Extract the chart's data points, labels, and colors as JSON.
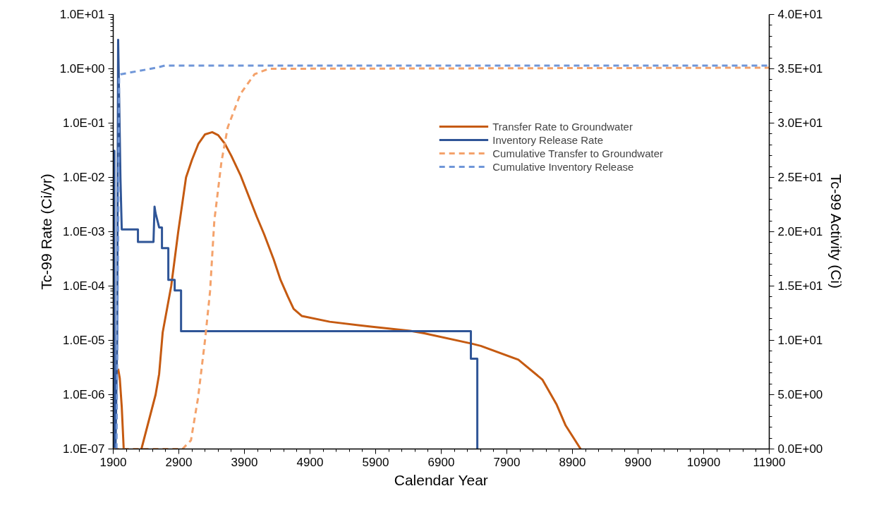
{
  "chart_data": {
    "type": "line",
    "xlabel": "Calendar Year",
    "ylabel": "Tc-99 Rate (Ci/yr)",
    "y2label": "Tc-99 Activity (Ci)",
    "log": "y",
    "xlim": [
      1900,
      11900
    ],
    "xticks": [
      1900,
      2900,
      3900,
      4900,
      5900,
      6900,
      7900,
      8900,
      9900,
      10900,
      11900
    ],
    "ylim": [
      1e-07,
      10
    ],
    "yticks": [
      {
        "value": 1e-07,
        "label": "1.0E-07"
      },
      {
        "value": 1e-06,
        "label": "1.0E-06"
      },
      {
        "value": 1e-05,
        "label": "1.0E-05"
      },
      {
        "value": 0.0001,
        "label": "1.0E-04"
      },
      {
        "value": 0.001,
        "label": "1.0E-03"
      },
      {
        "value": 0.01,
        "label": "1.0E-02"
      },
      {
        "value": 0.1,
        "label": "1.0E-01"
      },
      {
        "value": 1,
        "label": "1.0E+00"
      },
      {
        "value": 10,
        "label": "1.0E+01"
      }
    ],
    "y2lim": [
      0,
      40
    ],
    "y2ticks": [
      {
        "value": 0,
        "label": "0.0E+00"
      },
      {
        "value": 5,
        "label": "5.0E+00"
      },
      {
        "value": 10,
        "label": "1.0E+01"
      },
      {
        "value": 15,
        "label": "1.5E+01"
      },
      {
        "value": 20,
        "label": "2.0E+01"
      },
      {
        "value": 25,
        "label": "2.5E+01"
      },
      {
        "value": 30,
        "label": "3.0E+01"
      },
      {
        "value": 35,
        "label": "3.5E+01"
      },
      {
        "value": 40,
        "label": "4.0E+01"
      }
    ],
    "grid": false,
    "legend": "top right",
    "marker": "none",
    "series": [
      {
        "name": "Transfer Rate to Groundwater",
        "color": "#c55a11",
        "line_style": "solid",
        "x": [
          1975,
          2000,
          2030,
          2060,
          2061,
          2330,
          2546,
          2600,
          2654,
          2784,
          2891,
          3010,
          3100,
          3200,
          3300,
          3409,
          3500,
          3600,
          3700,
          3840,
          4087,
          4200,
          4346,
          4450,
          4562,
          4650,
          4777,
          5200,
          5800,
          6426,
          6641,
          7363,
          7503,
          8075,
          8441,
          8656,
          8797,
          9025
        ],
        "values": [
          3e-06,
          2e-06,
          6e-07,
          1e-07,
          null,
          1e-07,
          1e-06,
          2.4e-06,
          1.4e-05,
          0.0001,
          0.001,
          0.01,
          0.021,
          0.042,
          0.062,
          0.068,
          0.06,
          0.042,
          0.025,
          0.011,
          0.0019,
          0.0009,
          0.00031,
          0.00013,
          6.4e-05,
          3.8e-05,
          2.8e-05,
          2.2e-05,
          1.8e-05,
          1.5e-05,
          1.35e-05,
          8.7e-06,
          7.9e-06,
          4.4e-06,
          1.9e-06,
          6.7e-07,
          2.7e-07,
          1e-07
        ]
      },
      {
        "name": "Inventory Release Rate",
        "color": "#2f5597",
        "line_style": "solid",
        "x": [
          1900,
          1918,
          1920,
          1935,
          1960,
          1975,
          1990,
          2010,
          2030,
          2277,
          2277,
          2514,
          2530,
          2545,
          2580,
          2600,
          2643,
          2643,
          2740,
          2740,
          2837,
          2837,
          2934,
          2934,
          7352,
          7352,
          7450,
          7450
        ],
        "values": [
          1e-07,
          0.031,
          1e-07,
          1e-07,
          1e-05,
          3.4,
          0.3,
          0.01,
          0.0011,
          0.0011,
          0.00065,
          0.00065,
          0.0029,
          0.0022,
          0.0015,
          0.0012,
          0.0012,
          0.0005,
          0.0005,
          0.00013,
          0.00013,
          8.3e-05,
          8.3e-05,
          1.48e-05,
          1.48e-05,
          4.6e-06,
          4.6e-06,
          1e-07
        ]
      },
      {
        "name": "Cumulative Transfer to Groundwater",
        "color": "#f4a26b",
        "line_style": "dashed",
        "axis": "y2",
        "x": [
          1900,
          2956,
          3085,
          3193,
          3301,
          3376,
          3441,
          3549,
          3645,
          3840,
          4055,
          4270,
          11900
        ],
        "values": [
          0,
          0,
          0.8,
          4.7,
          10.1,
          14.5,
          21,
          26.4,
          29.6,
          32.7,
          34.5,
          35.0,
          35.1
        ]
      },
      {
        "name": "Cumulative Inventory Release",
        "color": "#6f96d8",
        "line_style": "dashed",
        "axis": "y2",
        "x": [
          1950,
          1975,
          1990,
          2020,
          2290,
          2560,
          2690,
          11900
        ],
        "values": [
          0,
          20,
          34.4,
          34.5,
          34.8,
          35.1,
          35.3,
          35.3
        ]
      }
    ]
  }
}
